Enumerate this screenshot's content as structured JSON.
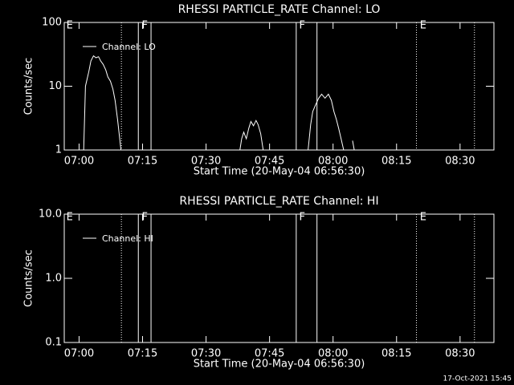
{
  "chart_data": [
    {
      "type": "line",
      "title": "RHESSI PARTICLE_RATE Channel: LO",
      "xlabel": "Start Time (20-May-04 06:56:30)",
      "ylabel": "Counts/sec",
      "log_y": true,
      "legend": "top-left",
      "xlim": [
        416.5,
        518
      ],
      "ylim": [
        1,
        100
      ],
      "xticks": [
        {
          "value": 420,
          "label": "07:00"
        },
        {
          "value": 435,
          "label": "07:15"
        },
        {
          "value": 450,
          "label": "07:30"
        },
        {
          "value": 465,
          "label": "07:45"
        },
        {
          "value": 480,
          "label": "08:00"
        },
        {
          "value": 495,
          "label": "08:15"
        },
        {
          "value": 510,
          "label": "08:30"
        }
      ],
      "yticks": [
        1,
        10,
        100
      ],
      "vlines": [
        {
          "x": 430,
          "style": "dotted"
        },
        {
          "x": 434,
          "style": "solid"
        },
        {
          "x": 437,
          "style": "solid"
        },
        {
          "x": 471.3,
          "style": "solid"
        },
        {
          "x": 476.2,
          "style": "solid"
        },
        {
          "x": 499.7,
          "style": "dotted"
        },
        {
          "x": 513.4,
          "style": "dotted"
        }
      ],
      "flags": [
        {
          "x": 417.0,
          "label": "E"
        },
        {
          "x": 434.8,
          "label": "F"
        },
        {
          "x": 472.0,
          "label": "F"
        },
        {
          "x": 500.5,
          "label": "E"
        }
      ],
      "series": [
        {
          "name": "Channel: LO",
          "color": "#ffffff",
          "x": [
            421.1,
            421.5,
            421.9,
            422.3,
            422.8,
            423.4,
            424.0,
            424.6,
            425.1,
            425.7,
            426.3,
            426.8,
            427.4,
            428.0,
            428.5,
            429.1,
            429.9,
            444.0,
            458.0,
            458.4,
            458.9,
            459.5,
            460.1,
            460.6,
            461.2,
            461.8,
            462.3,
            462.9,
            463.5,
            470.0,
            474.1,
            474.7,
            475.2,
            475.8,
            476.6,
            477.3,
            478.1,
            478.9,
            479.6,
            480.2,
            480.8,
            481.3,
            481.9,
            482.5,
            483.5,
            484.6,
            485.0
          ],
          "values": [
            1,
            10,
            13,
            17,
            25,
            30,
            28,
            29,
            25,
            22,
            18,
            14,
            12,
            9,
            6,
            3,
            1,
            null,
            1,
            1.5,
            1.9,
            1.5,
            2.2,
            2.8,
            2.4,
            2.9,
            2.5,
            1.8,
            1,
            null,
            1,
            2.5,
            4,
            5,
            6.5,
            7.5,
            6.5,
            7.5,
            6,
            4,
            3,
            2.2,
            1.5,
            1,
            null,
            1.4,
            1
          ]
        }
      ]
    },
    {
      "type": "line",
      "title": "RHESSI PARTICLE_RATE Channel: HI",
      "xlabel": "Start Time (20-May-04 06:56:30)",
      "ylabel": "Counts/sec",
      "log_y": true,
      "legend": "top-left",
      "xlim": [
        416.5,
        518
      ],
      "ylim": [
        0.1,
        10
      ],
      "xticks": [
        {
          "value": 420,
          "label": "07:00"
        },
        {
          "value": 435,
          "label": "07:15"
        },
        {
          "value": 450,
          "label": "07:30"
        },
        {
          "value": 465,
          "label": "07:45"
        },
        {
          "value": 480,
          "label": "08:00"
        },
        {
          "value": 495,
          "label": "08:15"
        },
        {
          "value": 510,
          "label": "08:30"
        }
      ],
      "yticks": [
        {
          "value": 0.1,
          "label": "0.1"
        },
        {
          "value": 1,
          "label": "1.0"
        },
        {
          "value": 10,
          "label": "10.0"
        }
      ],
      "vlines": [
        {
          "x": 430,
          "style": "dotted"
        },
        {
          "x": 434,
          "style": "solid"
        },
        {
          "x": 437,
          "style": "solid"
        },
        {
          "x": 471.3,
          "style": "solid"
        },
        {
          "x": 476.2,
          "style": "solid"
        },
        {
          "x": 499.7,
          "style": "dotted"
        },
        {
          "x": 513.4,
          "style": "dotted"
        }
      ],
      "flags": [
        {
          "x": 417.0,
          "label": "E"
        },
        {
          "x": 434.8,
          "label": "F"
        },
        {
          "x": 472.0,
          "label": "F"
        },
        {
          "x": 500.5,
          "label": "E"
        }
      ],
      "series": [
        {
          "name": "Channel: HI",
          "color": "#ffffff",
          "x": [],
          "values": []
        }
      ]
    }
  ],
  "footer": "17-Oct-2021 15:45"
}
